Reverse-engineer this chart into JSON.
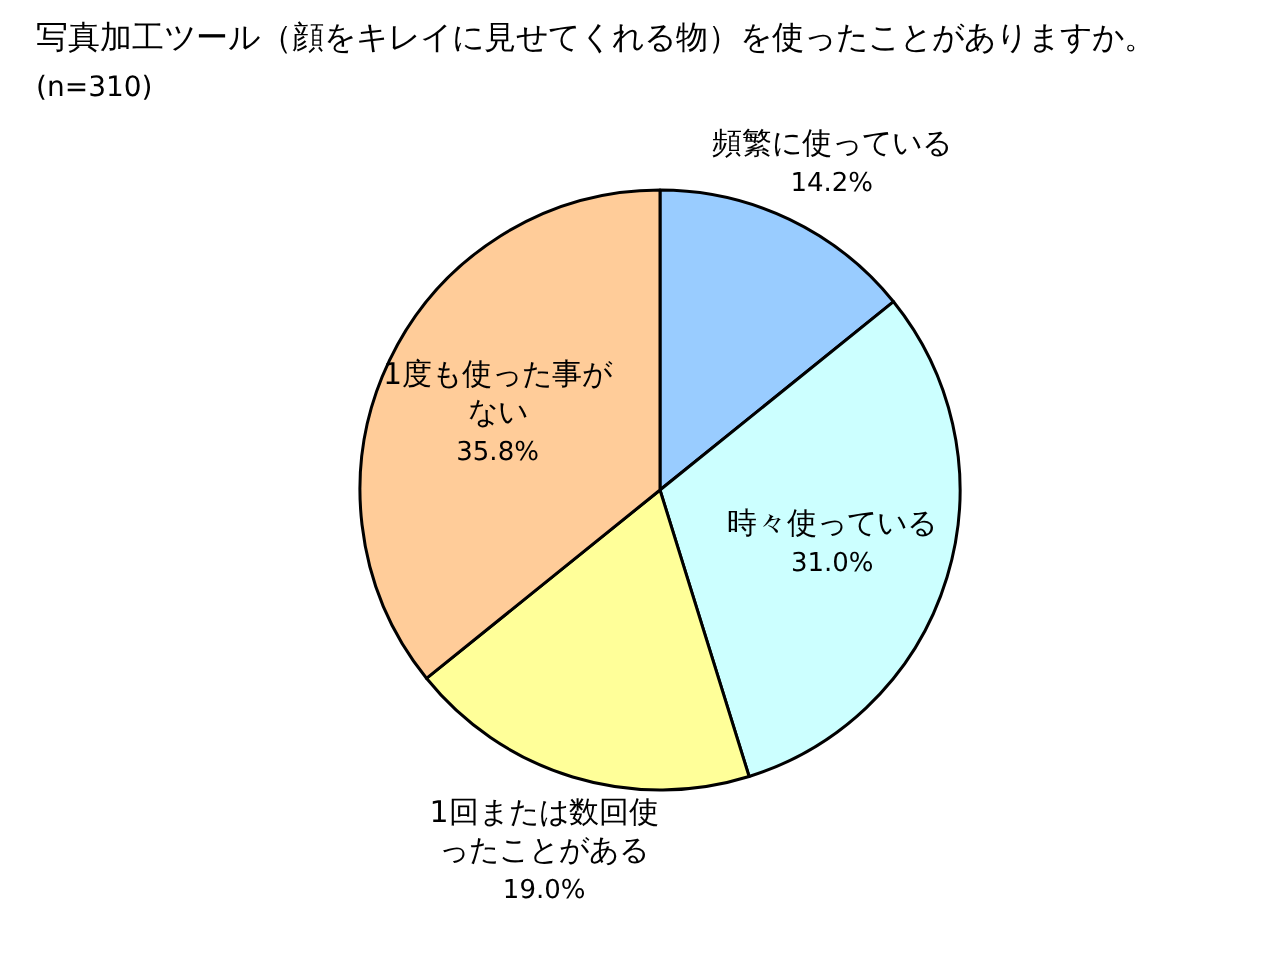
{
  "chart_data": {
    "type": "pie",
    "title": "写真加工ツール（顔をキレイに見せてくれる物）を使ったことがありますか。",
    "subtitle": "(n=310)",
    "categories": [
      "頻繁に使っている",
      "時々使っている",
      "1回または数回使ったことがある",
      "1度も使った事がない"
    ],
    "values": [
      14.2,
      31.0,
      19.0,
      35.8
    ],
    "colors": [
      "#99ccff",
      "#ccffff",
      "#ffff99",
      "#ffcc99"
    ],
    "value_labels": [
      "14.2%",
      "31.0%",
      "19.0%",
      "35.8%"
    ]
  }
}
